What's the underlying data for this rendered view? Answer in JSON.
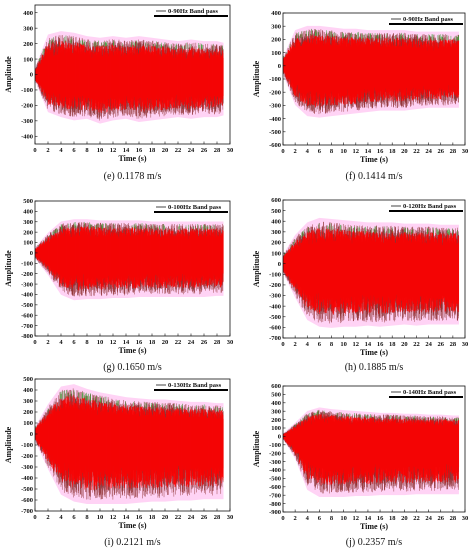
{
  "chart_data": [
    {
      "type": "line",
      "caption": "(e) 0.1178 m/s",
      "xlabel": "Time (s)",
      "ylabel": "Amplitude",
      "legend": "0-90Hz Band pass",
      "xlim": [
        0,
        30
      ],
      "ylim": [
        -450,
        450
      ],
      "xticks": [
        0,
        2,
        4,
        6,
        8,
        10,
        12,
        14,
        16,
        18,
        20,
        22,
        24,
        26,
        28,
        30
      ],
      "yticks": [
        -400,
        -300,
        -200,
        -100,
        0,
        100,
        200,
        300,
        400
      ],
      "series": [
        {
          "name": "0-90Hz Band pass",
          "x": [
            0,
            2,
            4,
            6,
            8,
            10,
            12,
            14,
            16,
            18,
            20,
            22,
            24,
            26,
            28,
            29
          ],
          "upper": [
            40,
            240,
            260,
            250,
            230,
            220,
            230,
            220,
            230,
            220,
            210,
            200,
            210,
            200,
            200,
            190
          ],
          "lower": [
            -40,
            -230,
            -260,
            -280,
            -270,
            -300,
            -280,
            -270,
            -290,
            -280,
            -270,
            -260,
            -270,
            -260,
            -260,
            -250
          ]
        }
      ]
    },
    {
      "type": "line",
      "caption": "(f) 0.1414 m/s",
      "xlabel": "Time (s)",
      "ylabel": "Amplitude",
      "legend": "0-90Hz Band pass",
      "xlim": [
        0,
        30
      ],
      "ylim": [
        -600,
        400
      ],
      "xticks": [
        0,
        2,
        4,
        6,
        8,
        10,
        12,
        14,
        16,
        18,
        20,
        22,
        24,
        26,
        28,
        30
      ],
      "yticks": [
        -600,
        -500,
        -400,
        -300,
        -200,
        -100,
        0,
        100,
        200,
        300,
        400
      ],
      "series": [
        {
          "name": "0-90Hz Band pass",
          "x": [
            0,
            2,
            4,
            6,
            8,
            10,
            12,
            14,
            16,
            18,
            20,
            22,
            24,
            26,
            28,
            29
          ],
          "upper": [
            60,
            250,
            280,
            280,
            270,
            260,
            260,
            250,
            250,
            250,
            250,
            240,
            240,
            240,
            240,
            240
          ],
          "lower": [
            -60,
            -280,
            -360,
            -370,
            -360,
            -350,
            -340,
            -330,
            -320,
            -320,
            -320,
            -310,
            -300,
            -300,
            -300,
            -300
          ]
        }
      ]
    },
    {
      "type": "line",
      "caption": "(g) 0.1650 m/s",
      "xlabel": "Time (s)",
      "ylabel": "Amplitude",
      "legend": "0-100Hz Band pass",
      "xlim": [
        0,
        30
      ],
      "ylim": [
        -800,
        500
      ],
      "xticks": [
        0,
        2,
        4,
        6,
        8,
        10,
        12,
        14,
        16,
        18,
        20,
        22,
        24,
        26,
        28,
        30
      ],
      "yticks": [
        -800,
        -700,
        -600,
        -500,
        -400,
        -300,
        -200,
        -100,
        0,
        100,
        200,
        300,
        400,
        500
      ],
      "series": [
        {
          "name": "0-100Hz Band pass",
          "x": [
            0,
            2,
            4,
            6,
            8,
            10,
            12,
            14,
            16,
            18,
            20,
            22,
            24,
            26,
            28,
            29
          ],
          "upper": [
            50,
            180,
            280,
            300,
            300,
            290,
            290,
            290,
            290,
            280,
            280,
            280,
            280,
            280,
            280,
            280
          ],
          "lower": [
            -50,
            -200,
            -380,
            -430,
            -420,
            -420,
            -410,
            -410,
            -400,
            -400,
            -400,
            -400,
            -400,
            -400,
            -390,
            -390
          ]
        }
      ]
    },
    {
      "type": "line",
      "caption": "(h) 0.1885 m/s",
      "xlabel": "Time (s)",
      "ylabel": "Amplitude",
      "legend": "0-120Hz Band pass",
      "xlim": [
        0,
        30
      ],
      "ylim": [
        -700,
        600
      ],
      "xticks": [
        0,
        2,
        4,
        6,
        8,
        10,
        12,
        14,
        16,
        18,
        20,
        22,
        24,
        26,
        28,
        30
      ],
      "yticks": [
        -700,
        -600,
        -500,
        -400,
        -300,
        -200,
        -100,
        0,
        100,
        200,
        300,
        400,
        500,
        600
      ],
      "series": [
        {
          "name": "0-120Hz Band pass",
          "x": [
            0,
            2,
            4,
            6,
            8,
            10,
            12,
            14,
            16,
            18,
            20,
            22,
            24,
            26,
            28,
            29
          ],
          "upper": [
            80,
            250,
            360,
            400,
            390,
            380,
            370,
            360,
            360,
            360,
            350,
            350,
            350,
            340,
            340,
            340
          ],
          "lower": [
            -80,
            -300,
            -500,
            -560,
            -570,
            -560,
            -560,
            -550,
            -560,
            -550,
            -540,
            -550,
            -540,
            -540,
            -540,
            -540
          ]
        }
      ]
    },
    {
      "type": "line",
      "caption": "(i) 0.2121 m/s",
      "xlabel": "Time (s)",
      "ylabel": "Amplitude",
      "legend": "0-130Hz Band pass",
      "xlim": [
        0,
        30
      ],
      "ylim": [
        -700,
        500
      ],
      "xticks": [
        0,
        2,
        4,
        6,
        8,
        10,
        12,
        14,
        16,
        18,
        20,
        22,
        24,
        26,
        28,
        30
      ],
      "yticks": [
        -700,
        -600,
        -500,
        -400,
        -300,
        -200,
        -100,
        0,
        100,
        200,
        300,
        400,
        500
      ],
      "series": [
        {
          "name": "0-130Hz Band pass",
          "x": [
            0,
            2,
            4,
            6,
            8,
            10,
            12,
            14,
            16,
            18,
            20,
            22,
            24,
            26,
            28,
            29
          ],
          "upper": [
            60,
            250,
            400,
            420,
            380,
            350,
            330,
            310,
            300,
            290,
            290,
            280,
            270,
            270,
            260,
            260
          ],
          "lower": [
            -60,
            -300,
            -520,
            -580,
            -600,
            -600,
            -600,
            -600,
            -590,
            -580,
            -580,
            -570,
            -570,
            -560,
            -560,
            -560
          ]
        }
      ]
    },
    {
      "type": "line",
      "caption": "(j) 0.2357 m/s",
      "xlabel": "Time (s)",
      "ylabel": "Amplitude",
      "legend": "0-140Hz Band pass",
      "xlim": [
        0,
        30
      ],
      "ylim": [
        -900,
        600
      ],
      "xticks": [
        0,
        2,
        4,
        6,
        8,
        10,
        12,
        14,
        16,
        18,
        20,
        22,
        24,
        26,
        28,
        30
      ],
      "yticks": [
        -900,
        -800,
        -700,
        -600,
        -500,
        -400,
        -300,
        -200,
        -100,
        0,
        100,
        200,
        300,
        400,
        500,
        600
      ],
      "series": [
        {
          "name": "0-140Hz Band pass",
          "x": [
            0,
            2,
            4,
            6,
            8,
            10,
            12,
            14,
            16,
            18,
            20,
            22,
            24,
            26,
            28,
            29
          ],
          "upper": [
            30,
            150,
            280,
            320,
            300,
            290,
            280,
            270,
            260,
            260,
            250,
            250,
            240,
            240,
            230,
            230
          ],
          "lower": [
            -30,
            -250,
            -600,
            -680,
            -680,
            -680,
            -670,
            -670,
            -660,
            -660,
            -660,
            -650,
            -650,
            -650,
            -650,
            -650
          ]
        }
      ]
    }
  ],
  "colors": {
    "signal": "#ff0000",
    "envelope": "#8b2a2a",
    "highlight_green": "#3aa83a",
    "halo": "#ff9ee8",
    "axis": "#111111"
  }
}
